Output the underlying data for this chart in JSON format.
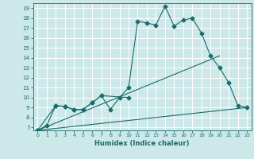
{
  "xlabel": "Humidex (Indice chaleur)",
  "bg_color": "#cce8e8",
  "grid_color": "#ffffff",
  "line_color": "#1a6b6b",
  "xlim": [
    -0.5,
    23.5
  ],
  "ylim": [
    6.7,
    19.5
  ],
  "xticks": [
    0,
    1,
    2,
    3,
    4,
    5,
    6,
    7,
    8,
    9,
    10,
    11,
    12,
    13,
    14,
    15,
    16,
    17,
    18,
    19,
    20,
    21,
    22,
    23
  ],
  "yticks": [
    7,
    8,
    9,
    10,
    11,
    12,
    13,
    14,
    15,
    16,
    17,
    18,
    19
  ],
  "line1_x": [
    0,
    1,
    2,
    3,
    4,
    5,
    6,
    7,
    8,
    9,
    10,
    11,
    12,
    13,
    14,
    15,
    16,
    17,
    18,
    19,
    20,
    21,
    22,
    23
  ],
  "line1_y": [
    6.7,
    7.2,
    9.2,
    9.1,
    8.8,
    8.8,
    9.5,
    10.2,
    8.8,
    10.0,
    11.0,
    17.7,
    17.5,
    17.3,
    19.2,
    17.2,
    17.8,
    18.0,
    16.5,
    14.2,
    13.0,
    11.5,
    9.2,
    9.0
  ],
  "line2_x": [
    0,
    2,
    3,
    4,
    5,
    6,
    7,
    10
  ],
  "line2_y": [
    6.7,
    9.2,
    9.1,
    8.8,
    8.8,
    9.5,
    10.2,
    10.0
  ],
  "line3_x": [
    0,
    23
  ],
  "line3_y": [
    6.7,
    9.0
  ],
  "line4_x": [
    0,
    20
  ],
  "line4_y": [
    6.7,
    14.2
  ]
}
